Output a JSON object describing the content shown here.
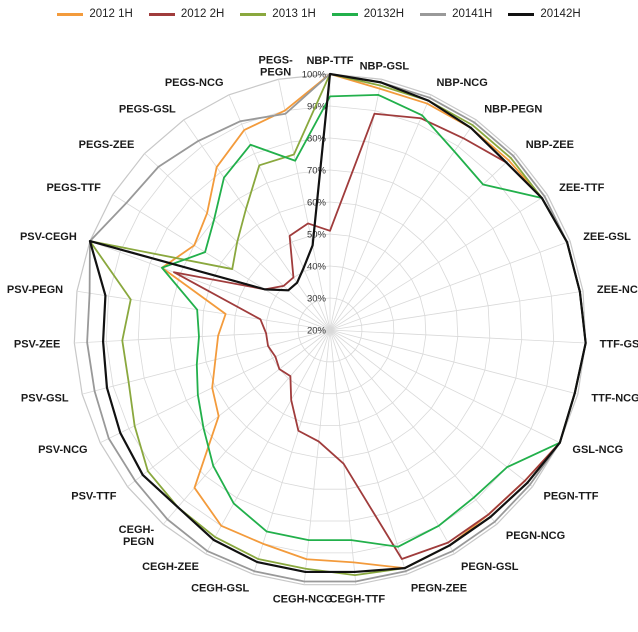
{
  "chart_data": {
    "type": "radar",
    "title": "",
    "r_range": [
      20,
      100
    ],
    "r_ticks": [
      "20%",
      "30%",
      "40%",
      "50%",
      "60%",
      "70%",
      "80%",
      "90%",
      "100%"
    ],
    "grid": true,
    "legend_position": "top",
    "categories": [
      "NBP-TTF",
      "NBP-GSL",
      "NBP-NCG",
      "NBP-PEGN",
      "NBP-ZEE",
      "ZEE-TTF",
      "ZEE-GSL",
      "ZEE-NCG",
      "TTF-GSL",
      "TTF-NCG",
      "GSL-NCG",
      "PEGN-TTF",
      "PEGN-NCG",
      "PEGN-GSL",
      "PEGN-ZEE",
      "CEGH-TTF",
      "CEGH-NCG",
      "CEGH-GSL",
      "CEGH-ZEE",
      "CEGH-PEGN",
      "PSV-TTF",
      "PSV-NCG",
      "PSV-GSL",
      "PSV-ZEE",
      "PSV-PEGN",
      "PSV-CEGH",
      "PEGS-TTF",
      "PEGS-ZEE",
      "PEGS-GSL",
      "PEGS-NCG",
      "PEGS-PEGN"
    ],
    "series": [
      {
        "name": "2012 1H",
        "color": "#f39b3c",
        "values": [
          100,
          97,
          97,
          97,
          97,
          98,
          99,
          99,
          100,
          99,
          100,
          97,
          96,
          97,
          98,
          93,
          92,
          90,
          90,
          85,
          64,
          61,
          57,
          55,
          53,
          76,
          70,
          73,
          82,
          88,
          90
        ]
      },
      {
        "name": "2012 2H",
        "color": "#a03c3c",
        "values": [
          51,
          89,
          92,
          93,
          96,
          98,
          99,
          99,
          100,
          99,
          100,
          97,
          96,
          96,
          95,
          62,
          55,
          53,
          45,
          39,
          40,
          39,
          40,
          40,
          42,
          72,
          44,
          40,
          40,
          52,
          54
        ]
      },
      {
        "name": "2013 1H",
        "color": "#8aa83e",
        "values": [
          100,
          98,
          98,
          98,
          98,
          98,
          99,
          99,
          100,
          99,
          100,
          98,
          97,
          97,
          98,
          97,
          95,
          95,
          94,
          93,
          92,
          88,
          85,
          85,
          83,
          100,
          56,
          60,
          66,
          76,
          76
        ]
      },
      {
        "name": "20132H",
        "color": "#22b04b",
        "values": [
          93,
          95,
          93,
          88,
          86,
          98,
          99,
          99,
          100,
          99,
          100,
          90,
          89,
          90,
          91,
          86,
          86,
          86,
          82,
          76,
          70,
          66,
          63,
          61,
          62,
          76,
          66,
          70,
          78,
          83,
          74
        ]
      },
      {
        "name": "20141H",
        "color": "#999999",
        "values": [
          100,
          99,
          99,
          99,
          99,
          99,
          99,
          99,
          100,
          99,
          100,
          99,
          99,
          99,
          99,
          99,
          99,
          99,
          99,
          98,
          97,
          97,
          96,
          96,
          96,
          100,
          95,
          94,
          92,
          91,
          89
        ]
      },
      {
        "name": "20142H",
        "color": "#111111",
        "values": [
          100,
          99,
          98,
          97,
          96,
          98,
          99,
          99,
          100,
          99,
          100,
          98,
          97,
          97,
          98,
          96,
          96,
          96,
          95,
          93,
          94,
          93,
          92,
          91,
          91,
          100,
          44,
          38,
          38,
          41,
          47
        ]
      }
    ]
  }
}
